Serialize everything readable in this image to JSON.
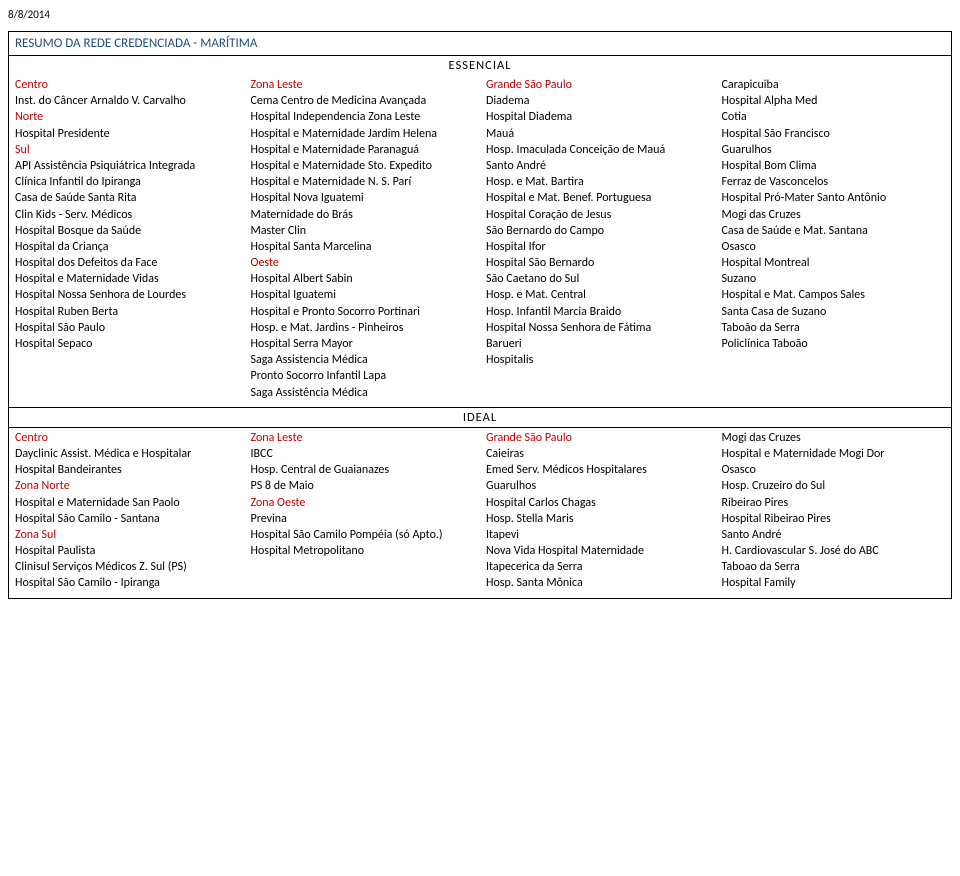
{
  "date": "8/8/2014",
  "title": "RESUMO DA REDE CREDENCIADA - MARÍTIMA",
  "sections": {
    "essencial": {
      "label": "ESSENCIAL",
      "cols": [
        [
          {
            "t": "Centro",
            "red": true
          },
          {
            "t": "Inst. do Câncer Arnaldo V. Carvalho"
          },
          {
            "t": "Norte",
            "red": true
          },
          {
            "t": "Hospital Presidente"
          },
          {
            "t": "Sul",
            "red": true
          },
          {
            "t": "API Assistência Psiquiátrica Integrada"
          },
          {
            "t": "Clínica Infantil do Ipiranga"
          },
          {
            "t": "Casa de Saúde Santa Rita"
          },
          {
            "t": "Clin Kids - Serv. Médicos"
          },
          {
            "t": "Hospital Bosque da Saúde"
          },
          {
            "t": "Hospital da Criança"
          },
          {
            "t": "Hospital dos Defeitos da Face"
          },
          {
            "t": "Hospital e Maternidade Vidas"
          },
          {
            "t": "Hospital Nossa Senhora de Lourdes"
          },
          {
            "t": "Hospital Ruben Berta"
          },
          {
            "t": "Hospital São Paulo"
          },
          {
            "t": "Hospital Sepaco"
          }
        ],
        [
          {
            "t": "Zona Leste",
            "red": true
          },
          {
            "t": "Cema Centro de Medicina Avançada"
          },
          {
            "t": "Hospital Independencia Zona Leste"
          },
          {
            "t": "Hospital e Maternidade Jardim Helena"
          },
          {
            "t": "Hospital e Maternidade Paranaguá"
          },
          {
            "t": "Hospital e Maternidade Sto. Expedito"
          },
          {
            "t": "Hospital e Maternidade N. S. Parí"
          },
          {
            "t": "Hospital Nova Iguatemi"
          },
          {
            "t": "Maternidade do Brás"
          },
          {
            "t": "Master Clin"
          },
          {
            "t": "Hospital Santa Marcelina"
          },
          {
            "t": "Oeste",
            "red": true
          },
          {
            "t": "Hospital Albert Sabin"
          },
          {
            "t": "Hospital Iguatemi"
          },
          {
            "t": "Hospital e Pronto Socorro Portinari"
          },
          {
            "t": "Hosp. e Mat. Jardins - Pinheiros"
          },
          {
            "t": "Hospital Serra Mayor"
          },
          {
            "t": "Saga Assistencia Médica"
          },
          {
            "t": "Pronto Socorro Infantil Lapa"
          },
          {
            "t": "Saga Assistência Médica"
          }
        ],
        [
          {
            "t": "Grande São Paulo",
            "red": true
          },
          {
            "t": "Diadema"
          },
          {
            "t": "Hospital Diadema"
          },
          {
            "t": "Mauá"
          },
          {
            "t": "Hosp. Imaculada Conceição de Mauá"
          },
          {
            "t": "Santo André"
          },
          {
            "t": "Hosp. e Mat. Bartira"
          },
          {
            "t": "Hospital e Mat. Benef. Portuguesa"
          },
          {
            "t": "Hospital Coração de Jesus"
          },
          {
            "t": "São Bernardo do Campo"
          },
          {
            "t": "Hospital Ifor"
          },
          {
            "t": "Hospital São Bernardo"
          },
          {
            "t": "São Caetano do Sul"
          },
          {
            "t": "Hosp. e Mat. Central"
          },
          {
            "t": "Hosp. Infantil Marcia Braido"
          },
          {
            "t": "Hospital Nossa Senhora de Fátima"
          },
          {
            "t": "Barueri"
          },
          {
            "t": "Hospitalis"
          }
        ],
        [
          {
            "t": "Carapicuiba"
          },
          {
            "t": "Hospital Alpha Med"
          },
          {
            "t": "Cotia"
          },
          {
            "t": "Hospital São Francisco"
          },
          {
            "t": "Guarulhos"
          },
          {
            "t": "Hospital Bom Clima"
          },
          {
            "t": "Ferraz de Vasconcelos"
          },
          {
            "t": "Hospital Pró-Mater Santo Antônio"
          },
          {
            "t": "Mogi das Cruzes"
          },
          {
            "t": "Casa de Saúde e Mat. Santana"
          },
          {
            "t": "Osasco"
          },
          {
            "t": "Hospital Montreal"
          },
          {
            "t": "Suzano"
          },
          {
            "t": "Hospital e Mat. Campos Sales"
          },
          {
            "t": "Santa Casa de Suzano"
          },
          {
            "t": "Taboão da Serra"
          },
          {
            "t": "Policlínica Taboão"
          }
        ]
      ]
    },
    "ideal": {
      "label": "IDEAL",
      "cols": [
        [
          {
            "t": "Centro",
            "red": true
          },
          {
            "t": "Dayclinic Assist. Médica e Hospitalar"
          },
          {
            "t": "Hospital Bandeirantes"
          },
          {
            "t": "Zona Norte",
            "red": true
          },
          {
            "t": "Hospital e Maternidade San Paolo"
          },
          {
            "t": "Hospital São Camilo - Santana"
          },
          {
            "t": "Zona Sul",
            "red": true
          },
          {
            "t": "Hospital Paulista"
          },
          {
            "t": "Clinisul Serviços Médicos Z. Sul (PS)"
          },
          {
            "t": "Hospital São Camilo - Ipiranga"
          }
        ],
        [
          {
            "t": "Zona Leste",
            "red": true
          },
          {
            "t": "IBCC"
          },
          {
            "t": "Hosp. Central de Guaianazes"
          },
          {
            "t": "PS 8 de Maio"
          },
          {
            "t": "Zona Oeste",
            "red": true
          },
          {
            "t": "Previna"
          },
          {
            "t": "Hospital São Camilo Pompéia (só Apto.)"
          },
          {
            "t": "Hospital Metropolitano"
          }
        ],
        [
          {
            "t": "Grande São Paulo",
            "red": true
          },
          {
            "t": "Caieiras"
          },
          {
            "t": "Emed Serv. Médicos Hospitalares"
          },
          {
            "t": "Guarulhos"
          },
          {
            "t": "Hospital Carlos Chagas"
          },
          {
            "t": "Hosp. Stella Maris"
          },
          {
            "t": "Itapevi"
          },
          {
            "t": "Nova Vida Hospital Maternidade"
          },
          {
            "t": "Itapecerica da Serra"
          },
          {
            "t": "Hosp. Santa Mônica"
          }
        ],
        [
          {
            "t": "Mogi das Cruzes"
          },
          {
            "t": "Hospital e Maternidade Mogi Dor"
          },
          {
            "t": "Osasco"
          },
          {
            "t": "Hosp. Cruzeiro do Sul"
          },
          {
            "t": "Ribeirao Pires"
          },
          {
            "t": "Hospital Ribeirao Pires"
          },
          {
            "t": "Santo André"
          },
          {
            "t": "H. Cardiovascular S. José do ABC"
          },
          {
            "t": "Taboao da Serra"
          },
          {
            "t": "Hospital Family"
          }
        ]
      ]
    }
  }
}
